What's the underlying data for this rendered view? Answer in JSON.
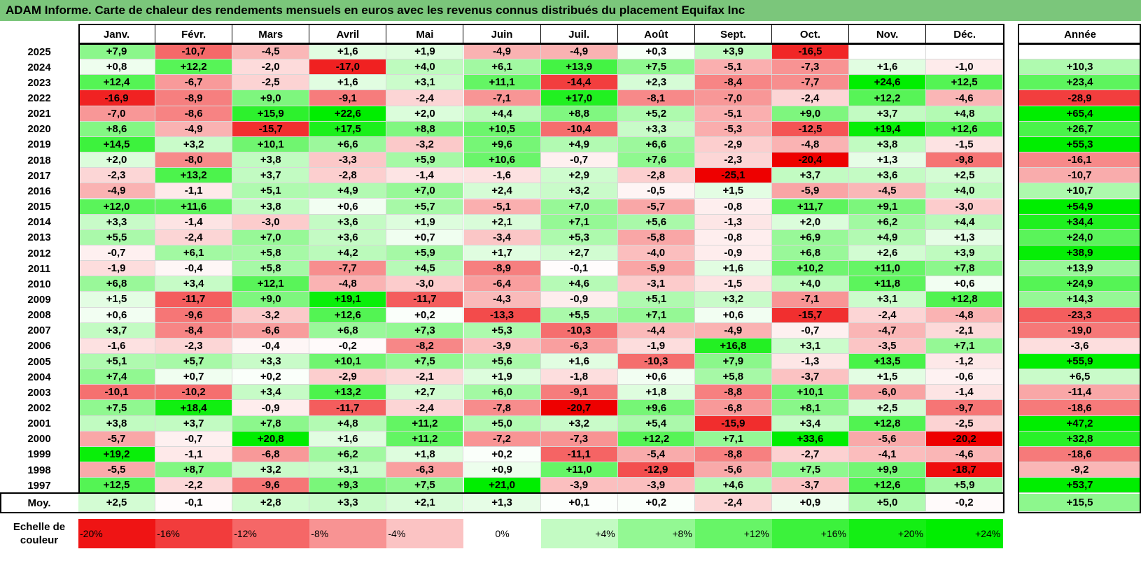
{
  "title": "ADAM Informe. Carte de chaleur des rendements mensuels en euros avec les revenus connus distribués du placement Equifax Inc",
  "colors": {
    "title_bar": "#7bc67b",
    "positive_max": "#00ee00",
    "negative_max": "#ee0000"
  },
  "chart_data": {
    "type": "heatmap",
    "months": [
      "Janv.",
      "Févr.",
      "Mars",
      "Avril",
      "Mai",
      "Juin",
      "Juil.",
      "Août",
      "Sept.",
      "Oct.",
      "Nov.",
      "Déc."
    ],
    "year_header": "Année",
    "rows": [
      {
        "year": "2025",
        "values": [
          "+7,9",
          "-10,7",
          "-4,5",
          "+1,6",
          "+1,9",
          "-4,9",
          "-4,9",
          "+0,3",
          "+3,9",
          "-16,5",
          "",
          ""
        ],
        "annual": ""
      },
      {
        "year": "2024",
        "values": [
          "+0,8",
          "+12,2",
          "-2,0",
          "-17,0",
          "+4,0",
          "+6,1",
          "+13,9",
          "+7,5",
          "-5,1",
          "-7,3",
          "+1,6",
          "-1,0"
        ],
        "annual": "+10,3"
      },
      {
        "year": "2023",
        "values": [
          "+12,4",
          "-6,7",
          "-2,5",
          "+1,6",
          "+3,1",
          "+11,1",
          "-14,4",
          "+2,3",
          "-8,4",
          "-7,7",
          "+24,6",
          "+12,5"
        ],
        "annual": "+23,4"
      },
      {
        "year": "2022",
        "values": [
          "-16,9",
          "-8,9",
          "+9,0",
          "-9,1",
          "-2,4",
          "-7,1",
          "+17,0",
          "-8,1",
          "-7,0",
          "-2,4",
          "+12,2",
          "-4,6"
        ],
        "annual": "-28,9"
      },
      {
        "year": "2021",
        "values": [
          "-7,0",
          "-8,6",
          "+15,9",
          "+22,6",
          "+2,0",
          "+4,4",
          "+8,8",
          "+5,2",
          "-5,1",
          "+9,0",
          "+3,7",
          "+4,8"
        ],
        "annual": "+65,4"
      },
      {
        "year": "2020",
        "values": [
          "+8,6",
          "-4,9",
          "-15,7",
          "+17,5",
          "+8,8",
          "+10,5",
          "-10,4",
          "+3,3",
          "-5,3",
          "-12,5",
          "+19,4",
          "+12,6"
        ],
        "annual": "+26,7"
      },
      {
        "year": "2019",
        "values": [
          "+14,5",
          "+3,2",
          "+10,1",
          "+6,6",
          "-3,2",
          "+9,6",
          "+4,9",
          "+6,6",
          "-2,9",
          "-4,8",
          "+3,8",
          "-1,5"
        ],
        "annual": "+55,3"
      },
      {
        "year": "2018",
        "values": [
          "+2,0",
          "-8,0",
          "+3,8",
          "-3,3",
          "+5,9",
          "+10,6",
          "-0,7",
          "+7,6",
          "-2,3",
          "-20,4",
          "+1,3",
          "-9,8"
        ],
        "annual": "-16,1"
      },
      {
        "year": "2017",
        "values": [
          "-2,3",
          "+13,2",
          "+3,7",
          "-2,8",
          "-1,4",
          "-1,6",
          "+2,9",
          "-2,8",
          "-25,1",
          "+3,7",
          "+3,6",
          "+2,5"
        ],
        "annual": "-10,7"
      },
      {
        "year": "2016",
        "values": [
          "-4,9",
          "-1,1",
          "+5,1",
          "+4,9",
          "+7,0",
          "+2,4",
          "+3,2",
          "-0,5",
          "+1,5",
          "-5,9",
          "-4,5",
          "+4,0"
        ],
        "annual": "+10,7"
      },
      {
        "year": "2015",
        "values": [
          "+12,0",
          "+11,6",
          "+3,8",
          "+0,6",
          "+5,7",
          "-5,1",
          "+7,0",
          "-5,7",
          "-0,8",
          "+11,7",
          "+9,1",
          "-3,0"
        ],
        "annual": "+54,9"
      },
      {
        "year": "2014",
        "values": [
          "+3,3",
          "-1,4",
          "-3,0",
          "+3,6",
          "+1,9",
          "+2,1",
          "+7,1",
          "+5,6",
          "-1,3",
          "+2,0",
          "+6,2",
          "+4,4"
        ],
        "annual": "+34,4"
      },
      {
        "year": "2013",
        "values": [
          "+5,5",
          "-2,4",
          "+7,0",
          "+3,6",
          "+0,7",
          "-3,4",
          "+5,3",
          "-5,8",
          "-0,8",
          "+6,9",
          "+4,9",
          "+1,3"
        ],
        "annual": "+24,0"
      },
      {
        "year": "2012",
        "values": [
          "-0,7",
          "+6,1",
          "+5,8",
          "+4,2",
          "+5,9",
          "+1,7",
          "+2,7",
          "-4,0",
          "-0,9",
          "+6,8",
          "+2,6",
          "+3,9"
        ],
        "annual": "+38,9"
      },
      {
        "year": "2011",
        "values": [
          "-1,9",
          "-0,4",
          "+5,8",
          "-7,7",
          "+4,5",
          "-8,9",
          "-0,1",
          "-5,9",
          "+1,6",
          "+10,2",
          "+11,0",
          "+7,8"
        ],
        "annual": "+13,9"
      },
      {
        "year": "2010",
        "values": [
          "+6,8",
          "+3,4",
          "+12,1",
          "-4,8",
          "-3,0",
          "-6,4",
          "+4,6",
          "-3,1",
          "-1,5",
          "+4,0",
          "+11,8",
          "+0,6"
        ],
        "annual": "+24,9"
      },
      {
        "year": "2009",
        "values": [
          "+1,5",
          "-11,7",
          "+9,0",
          "+19,1",
          "-11,7",
          "-4,3",
          "-0,9",
          "+5,1",
          "+3,2",
          "-7,1",
          "+3,1",
          "+12,8"
        ],
        "annual": "+14,3"
      },
      {
        "year": "2008",
        "values": [
          "+0,6",
          "-9,6",
          "-3,2",
          "+12,6",
          "+0,2",
          "-13,3",
          "+5,5",
          "+7,1",
          "+0,6",
          "-15,7",
          "-2,4",
          "-4,8"
        ],
        "annual": "-23,3"
      },
      {
        "year": "2007",
        "values": [
          "+3,7",
          "-8,4",
          "-6,6",
          "+6,8",
          "+7,3",
          "+5,3",
          "-10,3",
          "-4,4",
          "-4,9",
          "-0,7",
          "-4,7",
          "-2,1"
        ],
        "annual": "-19,0"
      },
      {
        "year": "2006",
        "values": [
          "-1,6",
          "-2,3",
          "-0,4",
          "-0,2",
          "-8,2",
          "-3,9",
          "-6,3",
          "-1,9",
          "+16,8",
          "+3,1",
          "-3,5",
          "+7,1"
        ],
        "annual": "-3,6"
      },
      {
        "year": "2005",
        "values": [
          "+5,1",
          "+5,7",
          "+3,3",
          "+10,1",
          "+7,5",
          "+5,6",
          "+1,6",
          "-10,3",
          "+7,9",
          "-1,3",
          "+13,5",
          "-1,2"
        ],
        "annual": "+55,9"
      },
      {
        "year": "2004",
        "values": [
          "+7,4",
          "+0,7",
          "+0,2",
          "-2,9",
          "-2,1",
          "+1,9",
          "-1,8",
          "+0,6",
          "+5,8",
          "-3,7",
          "+1,5",
          "-0,6"
        ],
        "annual": "+6,5"
      },
      {
        "year": "2003",
        "values": [
          "-10,1",
          "-10,2",
          "+3,4",
          "+13,2",
          "+2,7",
          "+6,0",
          "-9,1",
          "+1,8",
          "-8,8",
          "+10,1",
          "-6,0",
          "-1,4"
        ],
        "annual": "-11,4"
      },
      {
        "year": "2002",
        "values": [
          "+7,5",
          "+18,4",
          "-0,9",
          "-11,7",
          "-2,4",
          "-7,8",
          "-20,7",
          "+9,6",
          "-6,8",
          "+8,1",
          "+2,5",
          "-9,7"
        ],
        "annual": "-18,6"
      },
      {
        "year": "2001",
        "values": [
          "+3,8",
          "+3,7",
          "+7,8",
          "+4,8",
          "+11,2",
          "+5,0",
          "+3,2",
          "+5,4",
          "-15,9",
          "+3,4",
          "+12,8",
          "-2,5"
        ],
        "annual": "+47,2"
      },
      {
        "year": "2000",
        "values": [
          "-5,7",
          "-0,7",
          "+20,8",
          "+1,6",
          "+11,2",
          "-7,2",
          "-7,3",
          "+12,2",
          "+7,1",
          "+33,6",
          "-5,6",
          "-20,2"
        ],
        "annual": "+32,8"
      },
      {
        "year": "1999",
        "values": [
          "+19,2",
          "-1,1",
          "-6,8",
          "+6,2",
          "+1,8",
          "+0,2",
          "-11,1",
          "-5,4",
          "-8,8",
          "-2,7",
          "-4,1",
          "-4,6"
        ],
        "annual": "-18,6"
      },
      {
        "year": "1998",
        "values": [
          "-5,5",
          "+8,7",
          "+3,2",
          "+3,1",
          "-6,3",
          "+0,9",
          "+11,0",
          "-12,9",
          "-5,6",
          "+7,5",
          "+9,9",
          "-18,7"
        ],
        "annual": "-9,2"
      },
      {
        "year": "1997",
        "values": [
          "+12,5",
          "-2,2",
          "-9,6",
          "+9,3",
          "+7,5",
          "+21,0",
          "-3,9",
          "-3,9",
          "+4,6",
          "-3,7",
          "+12,6",
          "+5,9"
        ],
        "annual": "+53,7"
      }
    ],
    "average": {
      "label": "Moy.",
      "values": [
        "+2,5",
        "-0,1",
        "+2,8",
        "+3,3",
        "+2,1",
        "+1,3",
        "+0,1",
        "+0,2",
        "-2,4",
        "+0,9",
        "+5,0",
        "-0,2"
      ],
      "annual": "+15,5"
    },
    "scale": {
      "label": "Echelle de couleur",
      "steps": [
        {
          "label": "-20%",
          "value": -20
        },
        {
          "label": "-16%",
          "value": -16
        },
        {
          "label": "-12%",
          "value": -12
        },
        {
          "label": "-8%",
          "value": -8
        },
        {
          "label": "-4%",
          "value": -4
        },
        {
          "label": "0%",
          "value": 0
        },
        {
          "label": "+4%",
          "value": 4
        },
        {
          "label": "+8%",
          "value": 8
        },
        {
          "label": "+12%",
          "value": 12
        },
        {
          "label": "+16%",
          "value": 16
        },
        {
          "label": "+20%",
          "value": 20
        },
        {
          "label": "+24%",
          "value": 24
        }
      ]
    }
  }
}
